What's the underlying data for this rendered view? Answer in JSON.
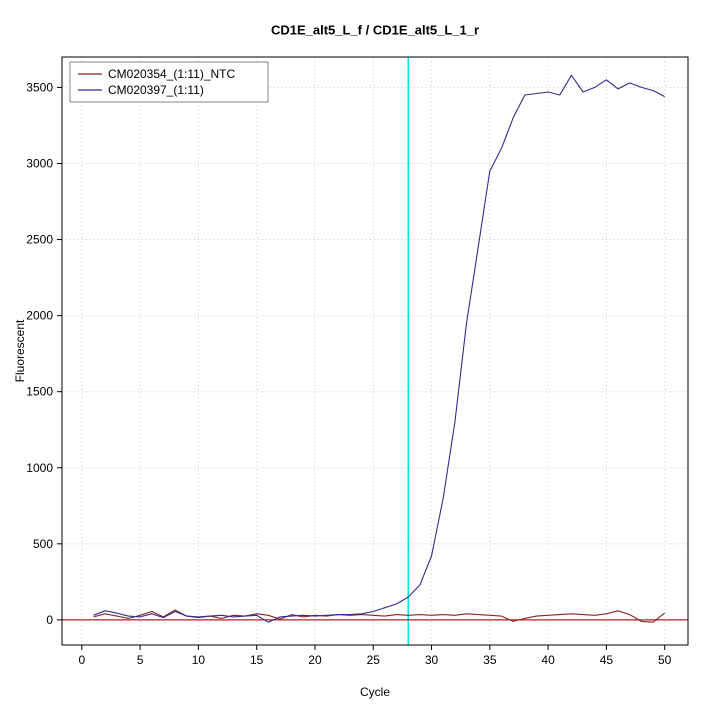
{
  "chart_data": {
    "type": "line",
    "title": "CD1E_alt5_L_f / CD1E_alt5_L_1_r",
    "xlabel": "Cycle",
    "ylabel": "Fluorescent",
    "grid": true,
    "legend_position": "top-left",
    "xlim": [
      -1.7,
      52
    ],
    "ylim": [
      -165,
      3700
    ],
    "x_ticks": [
      0,
      5,
      10,
      15,
      20,
      25,
      30,
      35,
      40,
      45,
      50
    ],
    "y_ticks": [
      0,
      500,
      1000,
      1500,
      2000,
      2500,
      3000,
      3500
    ],
    "x": [
      1,
      2,
      3,
      4,
      5,
      6,
      7,
      8,
      9,
      10,
      11,
      12,
      13,
      14,
      15,
      16,
      17,
      18,
      19,
      20,
      21,
      22,
      23,
      24,
      25,
      26,
      27,
      28,
      29,
      30,
      31,
      32,
      33,
      34,
      35,
      36,
      37,
      38,
      39,
      40,
      41,
      42,
      43,
      44,
      45,
      46,
      47,
      48,
      49,
      50
    ],
    "series": [
      {
        "name": "CM020354_(1:11)_NTC",
        "color": "#8b2323",
        "values": [
          20,
          40,
          25,
          10,
          30,
          55,
          20,
          65,
          25,
          15,
          25,
          10,
          30,
          25,
          40,
          30,
          5,
          35,
          20,
          30,
          25,
          35,
          30,
          35,
          30,
          25,
          35,
          30,
          35,
          30,
          35,
          30,
          40,
          35,
          30,
          25,
          -10,
          10,
          25,
          30,
          35,
          40,
          35,
          30,
          40,
          60,
          35,
          -10,
          -15,
          45
        ]
      },
      {
        "name": "CM020397_(1:11)",
        "color": "#2f2f8f",
        "values": [
          30,
          60,
          45,
          25,
          20,
          40,
          15,
          55,
          25,
          20,
          25,
          30,
          20,
          25,
          30,
          -15,
          20,
          25,
          30,
          25,
          30,
          35,
          35,
          40,
          55,
          80,
          105,
          150,
          230,
          420,
          800,
          1300,
          1950,
          2450,
          2950,
          3100,
          3300,
          3450,
          3460,
          3470,
          3450,
          3580,
          3470,
          3500,
          3550,
          3490,
          3530,
          3500,
          3480,
          3440
        ]
      }
    ],
    "threshold_line": {
      "y": 0,
      "color": "#b22222"
    },
    "vertical_line": {
      "x": 28,
      "color": "#00e5e5"
    },
    "colors": {
      "grid": "#c8c8c8",
      "axis": "#000000",
      "background": "#ffffff"
    }
  }
}
